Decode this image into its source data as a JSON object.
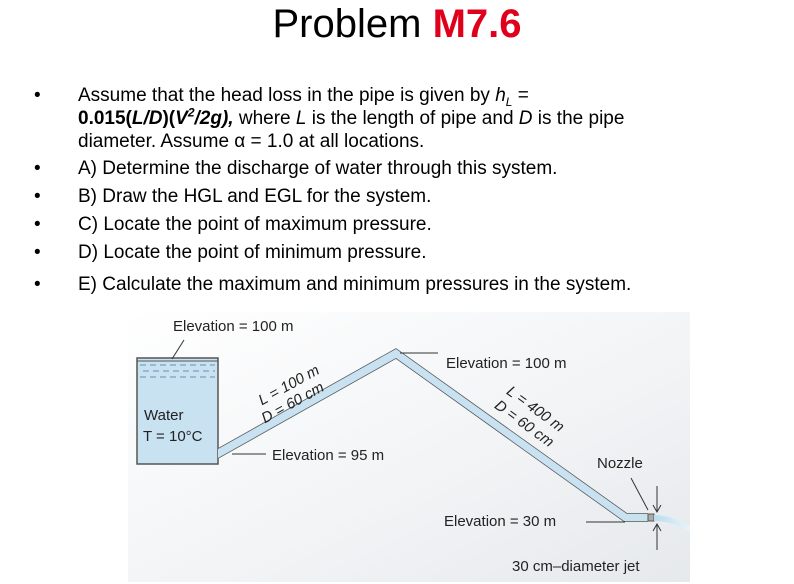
{
  "title": "Problem",
  "title_accent": "M7.6",
  "bullets": [
    {
      "segments": [
        "Assume that the head loss in the pipe is given by ",
        "h",
        "L",
        " =",
        "0.015(",
        "L/D",
        ")(",
        "V",
        "2",
        "/2g),",
        " where ",
        "L",
        " is the length of pipe and ",
        "D",
        " is the pipe",
        "diameter. Assume α = 1.0 at all locations."
      ]
    },
    "A) Determine the discharge of water through this system.",
    "B) Draw the HGL and EGL for the system.",
    "C) Locate the point of maximum pressure.",
    "D) Locate the point of minimum pressure.",
    "E) Calculate the maximum and minimum pressures in the system."
  ],
  "diagram": {
    "tank_elevation": "Elevation = 100 m",
    "peak_elevation": "Elevation = 100 m",
    "pipe1_length": "L = 100 m",
    "pipe1_diameter": "D = 60 cm",
    "inlet_elevation": "Elevation = 95 m",
    "pipe2_length": "L = 400 m",
    "pipe2_diameter": "D = 60 cm",
    "fluid": "Water",
    "temperature": "T = 10°C",
    "nozzle": "Nozzle",
    "outlet_elevation": "Elevation = 30 m",
    "jet": "30 cm–diameter jet"
  }
}
